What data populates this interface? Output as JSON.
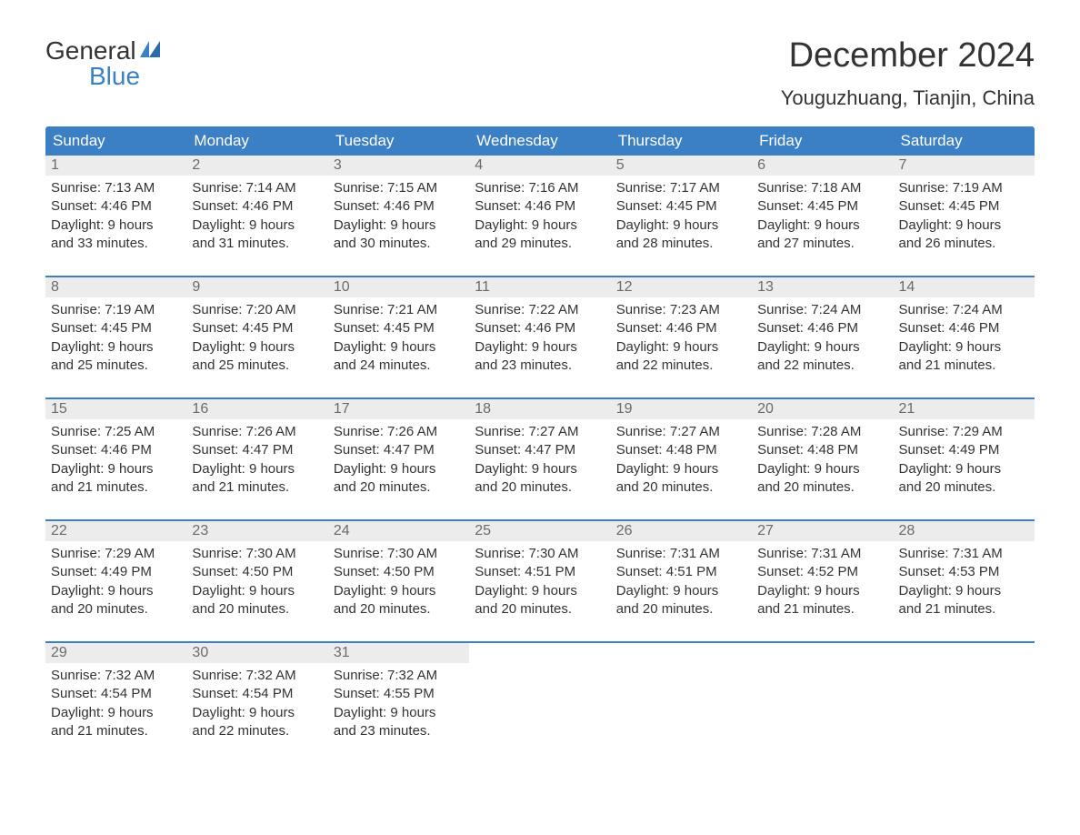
{
  "logo": {
    "line1": "General",
    "line2": "Blue",
    "general_color": "#333333",
    "blue_color": "#3b7fc4"
  },
  "header": {
    "title": "December 2024",
    "subtitle": "Youguzhuang, Tianjin, China"
  },
  "colors": {
    "header_bar": "#3b7fc4",
    "daynum_bg": "#ececec",
    "text": "#333333",
    "muted": "#6b6b6b",
    "background": "#ffffff"
  },
  "days_of_week": [
    "Sunday",
    "Monday",
    "Tuesday",
    "Wednesday",
    "Thursday",
    "Friday",
    "Saturday"
  ],
  "weeks": [
    [
      {
        "num": "1",
        "sunrise": "Sunrise: 7:13 AM",
        "sunset": "Sunset: 4:46 PM",
        "dl1": "Daylight: 9 hours",
        "dl2": "and 33 minutes."
      },
      {
        "num": "2",
        "sunrise": "Sunrise: 7:14 AM",
        "sunset": "Sunset: 4:46 PM",
        "dl1": "Daylight: 9 hours",
        "dl2": "and 31 minutes."
      },
      {
        "num": "3",
        "sunrise": "Sunrise: 7:15 AM",
        "sunset": "Sunset: 4:46 PM",
        "dl1": "Daylight: 9 hours",
        "dl2": "and 30 minutes."
      },
      {
        "num": "4",
        "sunrise": "Sunrise: 7:16 AM",
        "sunset": "Sunset: 4:46 PM",
        "dl1": "Daylight: 9 hours",
        "dl2": "and 29 minutes."
      },
      {
        "num": "5",
        "sunrise": "Sunrise: 7:17 AM",
        "sunset": "Sunset: 4:45 PM",
        "dl1": "Daylight: 9 hours",
        "dl2": "and 28 minutes."
      },
      {
        "num": "6",
        "sunrise": "Sunrise: 7:18 AM",
        "sunset": "Sunset: 4:45 PM",
        "dl1": "Daylight: 9 hours",
        "dl2": "and 27 minutes."
      },
      {
        "num": "7",
        "sunrise": "Sunrise: 7:19 AM",
        "sunset": "Sunset: 4:45 PM",
        "dl1": "Daylight: 9 hours",
        "dl2": "and 26 minutes."
      }
    ],
    [
      {
        "num": "8",
        "sunrise": "Sunrise: 7:19 AM",
        "sunset": "Sunset: 4:45 PM",
        "dl1": "Daylight: 9 hours",
        "dl2": "and 25 minutes."
      },
      {
        "num": "9",
        "sunrise": "Sunrise: 7:20 AM",
        "sunset": "Sunset: 4:45 PM",
        "dl1": "Daylight: 9 hours",
        "dl2": "and 25 minutes."
      },
      {
        "num": "10",
        "sunrise": "Sunrise: 7:21 AM",
        "sunset": "Sunset: 4:45 PM",
        "dl1": "Daylight: 9 hours",
        "dl2": "and 24 minutes."
      },
      {
        "num": "11",
        "sunrise": "Sunrise: 7:22 AM",
        "sunset": "Sunset: 4:46 PM",
        "dl1": "Daylight: 9 hours",
        "dl2": "and 23 minutes."
      },
      {
        "num": "12",
        "sunrise": "Sunrise: 7:23 AM",
        "sunset": "Sunset: 4:46 PM",
        "dl1": "Daylight: 9 hours",
        "dl2": "and 22 minutes."
      },
      {
        "num": "13",
        "sunrise": "Sunrise: 7:24 AM",
        "sunset": "Sunset: 4:46 PM",
        "dl1": "Daylight: 9 hours",
        "dl2": "and 22 minutes."
      },
      {
        "num": "14",
        "sunrise": "Sunrise: 7:24 AM",
        "sunset": "Sunset: 4:46 PM",
        "dl1": "Daylight: 9 hours",
        "dl2": "and 21 minutes."
      }
    ],
    [
      {
        "num": "15",
        "sunrise": "Sunrise: 7:25 AM",
        "sunset": "Sunset: 4:46 PM",
        "dl1": "Daylight: 9 hours",
        "dl2": "and 21 minutes."
      },
      {
        "num": "16",
        "sunrise": "Sunrise: 7:26 AM",
        "sunset": "Sunset: 4:47 PM",
        "dl1": "Daylight: 9 hours",
        "dl2": "and 21 minutes."
      },
      {
        "num": "17",
        "sunrise": "Sunrise: 7:26 AM",
        "sunset": "Sunset: 4:47 PM",
        "dl1": "Daylight: 9 hours",
        "dl2": "and 20 minutes."
      },
      {
        "num": "18",
        "sunrise": "Sunrise: 7:27 AM",
        "sunset": "Sunset: 4:47 PM",
        "dl1": "Daylight: 9 hours",
        "dl2": "and 20 minutes."
      },
      {
        "num": "19",
        "sunrise": "Sunrise: 7:27 AM",
        "sunset": "Sunset: 4:48 PM",
        "dl1": "Daylight: 9 hours",
        "dl2": "and 20 minutes."
      },
      {
        "num": "20",
        "sunrise": "Sunrise: 7:28 AM",
        "sunset": "Sunset: 4:48 PM",
        "dl1": "Daylight: 9 hours",
        "dl2": "and 20 minutes."
      },
      {
        "num": "21",
        "sunrise": "Sunrise: 7:29 AM",
        "sunset": "Sunset: 4:49 PM",
        "dl1": "Daylight: 9 hours",
        "dl2": "and 20 minutes."
      }
    ],
    [
      {
        "num": "22",
        "sunrise": "Sunrise: 7:29 AM",
        "sunset": "Sunset: 4:49 PM",
        "dl1": "Daylight: 9 hours",
        "dl2": "and 20 minutes."
      },
      {
        "num": "23",
        "sunrise": "Sunrise: 7:30 AM",
        "sunset": "Sunset: 4:50 PM",
        "dl1": "Daylight: 9 hours",
        "dl2": "and 20 minutes."
      },
      {
        "num": "24",
        "sunrise": "Sunrise: 7:30 AM",
        "sunset": "Sunset: 4:50 PM",
        "dl1": "Daylight: 9 hours",
        "dl2": "and 20 minutes."
      },
      {
        "num": "25",
        "sunrise": "Sunrise: 7:30 AM",
        "sunset": "Sunset: 4:51 PM",
        "dl1": "Daylight: 9 hours",
        "dl2": "and 20 minutes."
      },
      {
        "num": "26",
        "sunrise": "Sunrise: 7:31 AM",
        "sunset": "Sunset: 4:51 PM",
        "dl1": "Daylight: 9 hours",
        "dl2": "and 20 minutes."
      },
      {
        "num": "27",
        "sunrise": "Sunrise: 7:31 AM",
        "sunset": "Sunset: 4:52 PM",
        "dl1": "Daylight: 9 hours",
        "dl2": "and 21 minutes."
      },
      {
        "num": "28",
        "sunrise": "Sunrise: 7:31 AM",
        "sunset": "Sunset: 4:53 PM",
        "dl1": "Daylight: 9 hours",
        "dl2": "and 21 minutes."
      }
    ],
    [
      {
        "num": "29",
        "sunrise": "Sunrise: 7:32 AM",
        "sunset": "Sunset: 4:54 PM",
        "dl1": "Daylight: 9 hours",
        "dl2": "and 21 minutes."
      },
      {
        "num": "30",
        "sunrise": "Sunrise: 7:32 AM",
        "sunset": "Sunset: 4:54 PM",
        "dl1": "Daylight: 9 hours",
        "dl2": "and 22 minutes."
      },
      {
        "num": "31",
        "sunrise": "Sunrise: 7:32 AM",
        "sunset": "Sunset: 4:55 PM",
        "dl1": "Daylight: 9 hours",
        "dl2": "and 23 minutes."
      },
      null,
      null,
      null,
      null
    ]
  ]
}
